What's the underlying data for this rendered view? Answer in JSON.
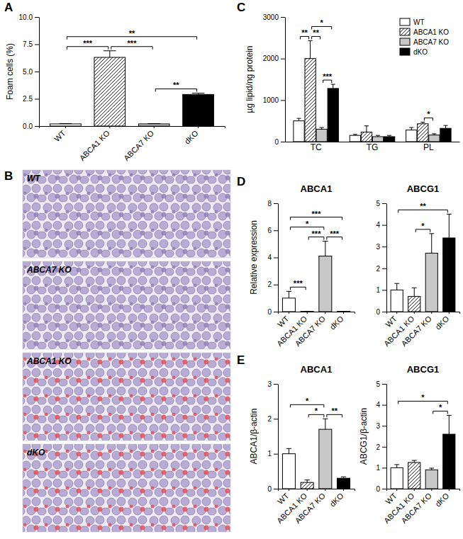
{
  "chart_data": [
    {
      "panel": "A",
      "type": "bar",
      "categories": [
        "WT",
        "ABCA1 KO",
        "ABCA7 KO",
        "dKO"
      ],
      "values": [
        0.2,
        6.3,
        0.2,
        2.9
      ],
      "errors": [
        0.03,
        0.6,
        0.03,
        0.12
      ],
      "colors": [
        "#ffffff",
        "#ffffff",
        "#c8c8c8",
        "#000000"
      ],
      "y_label": "Foam cells (%)",
      "ylim": [
        0,
        10
      ],
      "yticks": [
        {
          "value": 0,
          "label": "0.0"
        },
        {
          "value": 2.5,
          "label": "2.5"
        },
        {
          "value": 5,
          "label": "5.0"
        },
        {
          "value": 7.5,
          "label": "7.5"
        },
        {
          "value": 10,
          "label": "10.0"
        }
      ],
      "significance": [
        {
          "from": 0,
          "to": 1,
          "label": "***"
        },
        {
          "from": 1,
          "to": 2,
          "label": "***"
        },
        {
          "from": 0,
          "to": 3,
          "label": "**"
        },
        {
          "from": 2,
          "to": 3,
          "label": "**"
        }
      ]
    },
    {
      "panel": "C",
      "type": "bar",
      "categories": [
        "TC",
        "TG",
        "PL"
      ],
      "series": [
        {
          "name": "WT",
          "color": "#ffffff",
          "values": [
            500,
            150,
            280
          ],
          "errors": [
            60,
            25,
            60
          ]
        },
        {
          "name": "ABCA1 KO",
          "color": "#ffffff",
          "values": [
            2000,
            230,
            430
          ],
          "errors": [
            430,
            150,
            40
          ]
        },
        {
          "name": "ABCA7 KO",
          "color": "#c8c8c8",
          "values": [
            300,
            120,
            160
          ],
          "errors": [
            40,
            30,
            30
          ]
        },
        {
          "name": "dKO",
          "color": "#000000",
          "values": [
            1280,
            120,
            320
          ],
          "errors": [
            100,
            30,
            70
          ]
        }
      ],
      "legend": "top-right",
      "y_label": "µg lipid/ng protein",
      "ylim": [
        0,
        3000
      ],
      "yticks": [
        0,
        1000,
        2000,
        3000
      ],
      "significance": [
        {
          "category": 0,
          "from": 0,
          "to": 1,
          "label": "**"
        },
        {
          "category": 0,
          "from": 1,
          "to": 2,
          "label": "**"
        },
        {
          "category": 0,
          "from": 1,
          "to": 3,
          "label": "*"
        },
        {
          "category": 0,
          "from": 2,
          "to": 3,
          "label": "***"
        },
        {
          "category": 2,
          "from": 1,
          "to": 2,
          "label": "*"
        }
      ]
    },
    {
      "panel": "D",
      "type": "bar",
      "title": "ABCA1",
      "categories": [
        "WT",
        "ABCA1 KO",
        "ABCA7 KO",
        "dKO"
      ],
      "values": [
        1,
        0.02,
        4.1,
        0.02
      ],
      "errors": [
        0.5,
        0,
        1.1,
        0
      ],
      "colors": [
        "#ffffff",
        "#ffffff",
        "#c8c8c8",
        "#000000"
      ],
      "y_label": "Relative expression",
      "ylim": [
        0,
        8
      ],
      "yticks": [
        0,
        2,
        4,
        6,
        8
      ],
      "significance": [
        {
          "from": 0,
          "to": 1,
          "label": "***"
        },
        {
          "from": 1,
          "to": 2,
          "label": "***"
        },
        {
          "from": 2,
          "to": 3,
          "label": "***"
        },
        {
          "from": 0,
          "to": 2,
          "label": "*"
        },
        {
          "from": 0,
          "to": 3,
          "label": "***"
        }
      ]
    },
    {
      "type": "bar",
      "title": "ABCG1",
      "categories": [
        "WT",
        "ABCA1 KO",
        "ABCA7 KO",
        "dKO"
      ],
      "values": [
        1,
        0.7,
        2.7,
        3.4
      ],
      "errors": [
        0.3,
        0.4,
        0.9,
        1.1
      ],
      "colors": [
        "#ffffff",
        "#ffffff",
        "#c8c8c8",
        "#000000"
      ],
      "ylim": [
        0,
        5
      ],
      "yticks": [
        0,
        1,
        2,
        3,
        4,
        5
      ],
      "significance": [
        {
          "from": 1,
          "to": 2,
          "label": "*"
        },
        {
          "from": 0,
          "to": 3,
          "label": "**"
        }
      ]
    },
    {
      "panel": "E",
      "type": "bar",
      "title": "ABCA1",
      "categories": [
        "WT",
        "ABCA1 KO",
        "ABCA7 KO",
        "dKO"
      ],
      "values": [
        1,
        0.18,
        1.7,
        0.3
      ],
      "errors": [
        0.15,
        0.07,
        0.3,
        0.04
      ],
      "colors": [
        "#ffffff",
        "#ffffff",
        "#c8c8c8",
        "#000000"
      ],
      "y_label": "ABCA1/β-actin",
      "ylim": [
        0,
        3
      ],
      "yticks": [
        0,
        1,
        2,
        3
      ],
      "significance": [
        {
          "from": 1,
          "to": 2,
          "label": "*"
        },
        {
          "from": 2,
          "to": 3,
          "label": "**"
        },
        {
          "from": 0,
          "to": 2,
          "label": "*"
        }
      ]
    },
    {
      "type": "bar",
      "title": "ABCG1",
      "categories": [
        "WT",
        "ABCA1 KO",
        "ABCA7 KO",
        "dKO"
      ],
      "values": [
        1,
        1.25,
        0.9,
        2.6
      ],
      "errors": [
        0.15,
        0.1,
        0.08,
        0.9
      ],
      "colors": [
        "#ffffff",
        "#ffffff",
        "#c8c8c8",
        "#000000"
      ],
      "y_label": "ABCG1/β-actin",
      "ylim": [
        0,
        5
      ],
      "yticks": [
        0,
        1,
        2,
        3,
        4,
        5
      ],
      "significance": [
        {
          "from": 2,
          "to": 3,
          "label": "*"
        },
        {
          "from": 0,
          "to": 3,
          "label": "*"
        }
      ]
    }
  ],
  "panel_b": {
    "panel": "B",
    "images": [
      {
        "label": "WT",
        "color": "#8f7fb8"
      },
      {
        "label": "ABCA7 KO",
        "color": "#8f7fb8"
      },
      {
        "label": "ABCA1 KO",
        "color": "#e0505a"
      },
      {
        "label": "dKO",
        "color": "#e0505a"
      }
    ]
  }
}
